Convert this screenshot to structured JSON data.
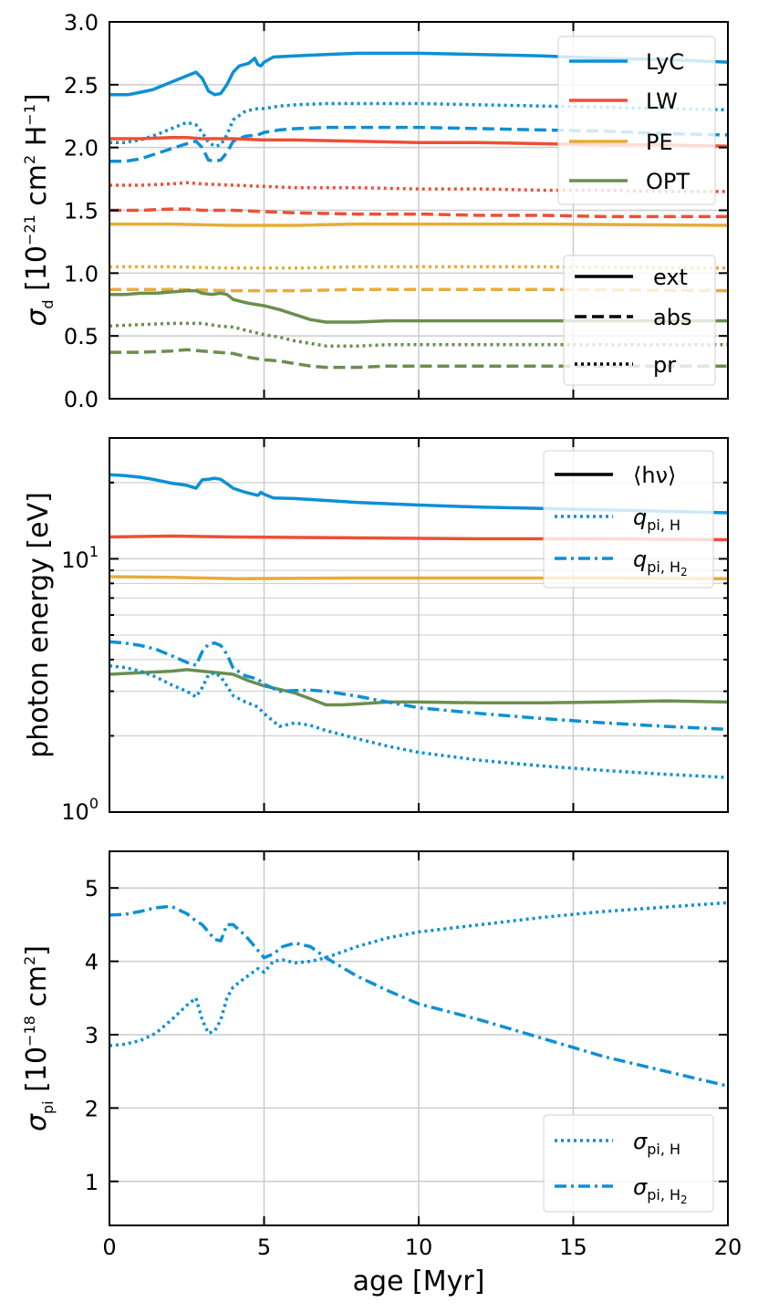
{
  "colors": {
    "lyc": "#0c90d6",
    "lw": "#ee4f35",
    "pe": "#e8ab3b",
    "opt": "#6b8e4e",
    "black": "#000000"
  },
  "chart_data": [
    {
      "type": "line",
      "panel": "top",
      "ylabel_sym": "σ",
      "ylabel_sub": "d",
      "ylabel_unit_a": " [10",
      "ylabel_exp1": "−21",
      "ylabel_unit_b": " cm",
      "ylabel_exp2": "2",
      "ylabel_unit_c": " H",
      "ylabel_exp3": "−1",
      "ylabel_unit_d": "]",
      "xlim": [
        0,
        20
      ],
      "ylim": [
        0,
        3
      ],
      "xticks": [
        0,
        5,
        10,
        15,
        20
      ],
      "yticks": [
        "0.0",
        "0.5",
        "1.0",
        "1.5",
        "2.0",
        "2.5",
        "3.0"
      ],
      "legend_color": {
        "position": "top-right",
        "entries": [
          "LyC",
          "LW",
          "PE",
          "OPT"
        ]
      },
      "legend_style": {
        "position": "center-right",
        "entries": [
          "ext",
          "abs",
          "pr"
        ]
      },
      "series": [
        {
          "name": "LyC ext",
          "color": "lyc",
          "style": "solid",
          "x": [
            0,
            0.2,
            0.4,
            0.6,
            0.8,
            1.0,
            1.4,
            1.8,
            2.2,
            2.6,
            2.8,
            3.0,
            3.2,
            3.4,
            3.6,
            3.8,
            4.0,
            4.2,
            4.5,
            4.7,
            4.8,
            4.9,
            5.0,
            5.3,
            6,
            7,
            8,
            9,
            10,
            12,
            14,
            16,
            18,
            20
          ],
          "y": [
            2.42,
            2.42,
            2.42,
            2.42,
            2.43,
            2.44,
            2.46,
            2.5,
            2.54,
            2.58,
            2.6,
            2.55,
            2.45,
            2.42,
            2.43,
            2.5,
            2.6,
            2.65,
            2.67,
            2.71,
            2.66,
            2.65,
            2.68,
            2.72,
            2.73,
            2.74,
            2.75,
            2.75,
            2.75,
            2.74,
            2.73,
            2.71,
            2.7,
            2.68
          ]
        },
        {
          "name": "LyC abs",
          "color": "lyc",
          "style": "dashed",
          "x": [
            0,
            0.5,
            1.0,
            1.5,
            2.0,
            2.5,
            2.8,
            3.0,
            3.2,
            3.4,
            3.6,
            3.8,
            4.0,
            4.4,
            4.8,
            5.0,
            5.5,
            6,
            7,
            8,
            9,
            10,
            12,
            14,
            16,
            18,
            20
          ],
          "y": [
            1.89,
            1.89,
            1.91,
            1.95,
            1.99,
            2.03,
            2.05,
            2.0,
            1.9,
            1.89,
            1.9,
            1.96,
            2.05,
            2.09,
            2.1,
            2.12,
            2.14,
            2.15,
            2.16,
            2.16,
            2.16,
            2.16,
            2.15,
            2.14,
            2.13,
            2.11,
            2.1
          ]
        },
        {
          "name": "LyC pr",
          "color": "lyc",
          "style": "dotted",
          "x": [
            0,
            0.5,
            1.0,
            1.5,
            2.0,
            2.5,
            2.8,
            3.0,
            3.2,
            3.4,
            3.6,
            3.8,
            4.0,
            4.4,
            4.8,
            5.0,
            5.5,
            6,
            7,
            8,
            10,
            12,
            14,
            16,
            18,
            20
          ],
          "y": [
            2.04,
            2.04,
            2.06,
            2.1,
            2.15,
            2.2,
            2.18,
            2.12,
            2.04,
            2.01,
            2.02,
            2.1,
            2.22,
            2.29,
            2.31,
            2.31,
            2.33,
            2.34,
            2.35,
            2.35,
            2.35,
            2.34,
            2.33,
            2.32,
            2.31,
            2.3
          ]
        },
        {
          "name": "LW ext",
          "color": "lw",
          "style": "solid",
          "x": [
            0,
            1,
            2,
            2.5,
            3,
            4,
            5,
            6,
            8,
            10,
            12,
            14,
            16,
            18,
            20
          ],
          "y": [
            2.07,
            2.07,
            2.08,
            2.08,
            2.07,
            2.07,
            2.06,
            2.06,
            2.05,
            2.04,
            2.04,
            2.03,
            2.02,
            2.02,
            2.01
          ]
        },
        {
          "name": "LW pr",
          "color": "lw",
          "style": "dotted",
          "x": [
            0,
            1,
            2,
            2.5,
            3,
            4,
            5,
            6,
            8,
            10,
            12,
            14,
            16,
            18,
            20
          ],
          "y": [
            1.7,
            1.7,
            1.71,
            1.72,
            1.71,
            1.7,
            1.69,
            1.68,
            1.68,
            1.67,
            1.67,
            1.66,
            1.66,
            1.65,
            1.65
          ]
        },
        {
          "name": "LW abs",
          "color": "lw",
          "style": "dashed",
          "x": [
            0,
            1,
            2,
            2.5,
            3,
            4,
            5,
            6,
            8,
            10,
            12,
            14,
            16,
            18,
            20
          ],
          "y": [
            1.5,
            1.5,
            1.51,
            1.51,
            1.5,
            1.5,
            1.49,
            1.48,
            1.47,
            1.47,
            1.46,
            1.46,
            1.45,
            1.45,
            1.45
          ]
        },
        {
          "name": "PE ext",
          "color": "pe",
          "style": "solid",
          "x": [
            0,
            2,
            4,
            6,
            8,
            10,
            14,
            20
          ],
          "y": [
            1.39,
            1.39,
            1.38,
            1.38,
            1.39,
            1.39,
            1.39,
            1.38
          ]
        },
        {
          "name": "PE pr",
          "color": "pe",
          "style": "dotted",
          "x": [
            0,
            2,
            4,
            6,
            8,
            10,
            14,
            20
          ],
          "y": [
            1.05,
            1.05,
            1.04,
            1.04,
            1.05,
            1.05,
            1.05,
            1.04
          ]
        },
        {
          "name": "PE abs",
          "color": "pe",
          "style": "dashed",
          "x": [
            0,
            2,
            4,
            6,
            8,
            10,
            14,
            20
          ],
          "y": [
            0.87,
            0.87,
            0.86,
            0.86,
            0.87,
            0.87,
            0.87,
            0.86
          ]
        },
        {
          "name": "OPT ext",
          "color": "opt",
          "style": "solid",
          "x": [
            0,
            0.5,
            1,
            1.5,
            2,
            2.5,
            2.8,
            3.0,
            3.3,
            3.6,
            3.8,
            4.0,
            4.5,
            5.0,
            5.5,
            6,
            6.5,
            7,
            7.5,
            8,
            9,
            10,
            12,
            14,
            16,
            18,
            20
          ],
          "y": [
            0.83,
            0.83,
            0.84,
            0.84,
            0.85,
            0.86,
            0.86,
            0.84,
            0.83,
            0.84,
            0.83,
            0.79,
            0.76,
            0.74,
            0.71,
            0.67,
            0.63,
            0.61,
            0.61,
            0.61,
            0.62,
            0.62,
            0.62,
            0.62,
            0.62,
            0.62,
            0.62
          ]
        },
        {
          "name": "OPT pr",
          "color": "opt",
          "style": "dotted",
          "x": [
            0,
            1,
            2,
            2.5,
            3,
            3.5,
            4,
            4.5,
            5,
            5.5,
            6,
            6.5,
            7,
            8,
            9,
            10,
            12,
            14,
            16,
            18,
            20
          ],
          "y": [
            0.58,
            0.59,
            0.6,
            0.6,
            0.6,
            0.58,
            0.57,
            0.54,
            0.51,
            0.49,
            0.46,
            0.44,
            0.42,
            0.42,
            0.43,
            0.43,
            0.43,
            0.43,
            0.43,
            0.43,
            0.43
          ]
        },
        {
          "name": "OPT abs",
          "color": "opt",
          "style": "dashed",
          "x": [
            0,
            1,
            2,
            2.5,
            3,
            3.5,
            4,
            4.5,
            5,
            5.5,
            6,
            6.5,
            7,
            8,
            9,
            10,
            12,
            14,
            16,
            18,
            20
          ],
          "y": [
            0.37,
            0.37,
            0.38,
            0.39,
            0.38,
            0.37,
            0.36,
            0.33,
            0.31,
            0.3,
            0.28,
            0.26,
            0.25,
            0.25,
            0.26,
            0.26,
            0.26,
            0.26,
            0.26,
            0.26,
            0.26
          ]
        }
      ]
    },
    {
      "type": "line",
      "panel": "middle",
      "ylabel": "photon energy  [eV]",
      "yscale": "log",
      "xlim": [
        0,
        20
      ],
      "ylim": [
        1,
        30
      ],
      "xticks": [
        0,
        5,
        10,
        15,
        20
      ],
      "yticks": [
        {
          "value": 1,
          "base": "10",
          "exp": "0"
        },
        {
          "value": 10,
          "base": "10",
          "exp": "1"
        }
      ],
      "legend": {
        "position": "top-right",
        "entries": [
          {
            "label": "⟨hν⟩",
            "style": "solid"
          },
          {
            "label_sym": "q",
            "label_sub": "pi, H",
            "style": "dotted"
          },
          {
            "label_sym": "q",
            "label_sub": "pi, H",
            "label_subsub": "2",
            "style": "dashdot"
          }
        ]
      },
      "series": [
        {
          "name": "LyC hnu",
          "color": "lyc",
          "style": "solid",
          "x": [
            0,
            0.5,
            1,
            1.5,
            2,
            2.5,
            2.8,
            3.0,
            3.2,
            3.4,
            3.6,
            3.8,
            4.0,
            4.4,
            4.8,
            4.9,
            5.0,
            5.3,
            6,
            7,
            8,
            10,
            12,
            14,
            16,
            18,
            20
          ],
          "y": [
            21.5,
            21.3,
            21.0,
            20.5,
            19.9,
            19.5,
            19.0,
            20.5,
            20.6,
            20.8,
            20.6,
            19.8,
            19.0,
            18.3,
            17.8,
            18.3,
            18.0,
            17.4,
            17.3,
            17.0,
            16.7,
            16.3,
            16.0,
            15.8,
            15.6,
            15.4,
            15.2
          ]
        },
        {
          "name": "LW hnu",
          "color": "lw",
          "style": "solid",
          "x": [
            0,
            2,
            4,
            8,
            12,
            16,
            20
          ],
          "y": [
            12.2,
            12.3,
            12.2,
            12.1,
            12.0,
            12.0,
            11.9
          ]
        },
        {
          "name": "PE hnu",
          "color": "pe",
          "style": "solid",
          "x": [
            0,
            2,
            4,
            8,
            12,
            16,
            20
          ],
          "y": [
            8.5,
            8.45,
            8.35,
            8.4,
            8.4,
            8.4,
            8.35
          ]
        },
        {
          "name": "OPT hnu",
          "color": "opt",
          "style": "solid",
          "x": [
            0,
            1,
            2,
            2.5,
            3,
            3.5,
            4,
            4.5,
            5,
            5.5,
            6,
            6.5,
            7,
            7.5,
            8,
            9,
            10,
            12,
            14,
            16,
            18,
            20
          ],
          "y": [
            3.5,
            3.55,
            3.6,
            3.65,
            3.6,
            3.55,
            3.5,
            3.3,
            3.15,
            3.05,
            2.95,
            2.8,
            2.65,
            2.65,
            2.67,
            2.72,
            2.72,
            2.7,
            2.7,
            2.72,
            2.75,
            2.72
          ]
        },
        {
          "name": "LyC q_pi,H2",
          "color": "lyc",
          "style": "dashdot",
          "x": [
            0,
            0.5,
            1,
            1.5,
            2,
            2.5,
            2.8,
            3.0,
            3.2,
            3.4,
            3.6,
            3.8,
            4.0,
            4.4,
            4.8,
            5.0,
            5.5,
            6,
            6.5,
            7,
            8,
            9,
            10,
            12,
            14,
            16,
            18,
            20
          ],
          "y": [
            4.7,
            4.65,
            4.55,
            4.4,
            4.15,
            3.9,
            3.8,
            4.3,
            4.6,
            4.65,
            4.55,
            4.2,
            3.7,
            3.45,
            3.35,
            3.2,
            3.0,
            3.02,
            3.03,
            3.0,
            2.87,
            2.72,
            2.58,
            2.45,
            2.34,
            2.25,
            2.18,
            2.12
          ]
        },
        {
          "name": "LyC q_pi,H",
          "color": "lyc",
          "style": "dotted",
          "x": [
            0,
            0.5,
            1,
            1.5,
            2,
            2.5,
            2.8,
            3.0,
            3.2,
            3.4,
            3.6,
            3.8,
            4.0,
            4.4,
            4.8,
            5.0,
            5.5,
            6,
            6.5,
            7,
            8,
            9,
            10,
            12,
            14,
            16,
            18,
            20
          ],
          "y": [
            3.78,
            3.72,
            3.6,
            3.42,
            3.18,
            3.0,
            2.85,
            3.1,
            3.48,
            3.55,
            3.42,
            3.15,
            2.88,
            2.72,
            2.6,
            2.45,
            2.18,
            2.25,
            2.2,
            2.1,
            1.95,
            1.82,
            1.72,
            1.6,
            1.52,
            1.46,
            1.41,
            1.37
          ]
        }
      ]
    },
    {
      "type": "line",
      "panel": "bottom",
      "ylabel_sym": "σ",
      "ylabel_sub": "pi",
      "ylabel_unit_a": " [10",
      "ylabel_exp1": "−18",
      "ylabel_unit_b": " cm",
      "ylabel_exp2": "2",
      "ylabel_unit_d": "]",
      "xlabel": "age [Myr]",
      "xlim": [
        0,
        20
      ],
      "ylim": [
        0.4,
        5.5
      ],
      "xticks": [
        0,
        5,
        10,
        15,
        20
      ],
      "yticks": [
        "1",
        "2",
        "3",
        "4",
        "5"
      ],
      "legend": {
        "position": "bottom-right",
        "entries": [
          {
            "label_sym": "σ",
            "label_sub": "pi, H",
            "style": "dotted"
          },
          {
            "label_sym": "σ",
            "label_sub": "pi, H",
            "label_subsub": "2",
            "style": "dashdot"
          }
        ]
      },
      "series": [
        {
          "name": "sigma_pi,H",
          "color": "lyc",
          "style": "dotted",
          "x": [
            0,
            0.5,
            1,
            1.5,
            2,
            2.5,
            2.8,
            3.0,
            3.2,
            3.4,
            3.6,
            3.8,
            4.0,
            4.4,
            4.8,
            5.0,
            5.3,
            5.6,
            6,
            6.5,
            7,
            8,
            9,
            10,
            12,
            14,
            16,
            18,
            20
          ],
          "y": [
            2.85,
            2.87,
            2.92,
            3.02,
            3.2,
            3.4,
            3.5,
            3.2,
            3.02,
            3.05,
            3.2,
            3.5,
            3.65,
            3.78,
            3.9,
            3.85,
            4.0,
            4.02,
            3.98,
            4.0,
            4.05,
            4.2,
            4.32,
            4.4,
            4.5,
            4.6,
            4.68,
            4.74,
            4.8
          ]
        },
        {
          "name": "sigma_pi,H2",
          "color": "lyc",
          "style": "dashdot",
          "x": [
            0,
            0.5,
            1,
            1.5,
            2,
            2.5,
            2.8,
            3.0,
            3.2,
            3.4,
            3.6,
            3.8,
            4.0,
            4.4,
            4.8,
            5.0,
            5.3,
            5.6,
            6,
            6.5,
            7,
            8,
            9,
            10,
            12,
            14,
            16,
            18,
            20
          ],
          "y": [
            4.63,
            4.64,
            4.68,
            4.73,
            4.75,
            4.65,
            4.55,
            4.5,
            4.4,
            4.3,
            4.28,
            4.5,
            4.5,
            4.35,
            4.15,
            4.05,
            4.1,
            4.2,
            4.25,
            4.2,
            4.05,
            3.8,
            3.6,
            3.42,
            3.2,
            2.95,
            2.7,
            2.5,
            2.3
          ]
        }
      ]
    }
  ]
}
